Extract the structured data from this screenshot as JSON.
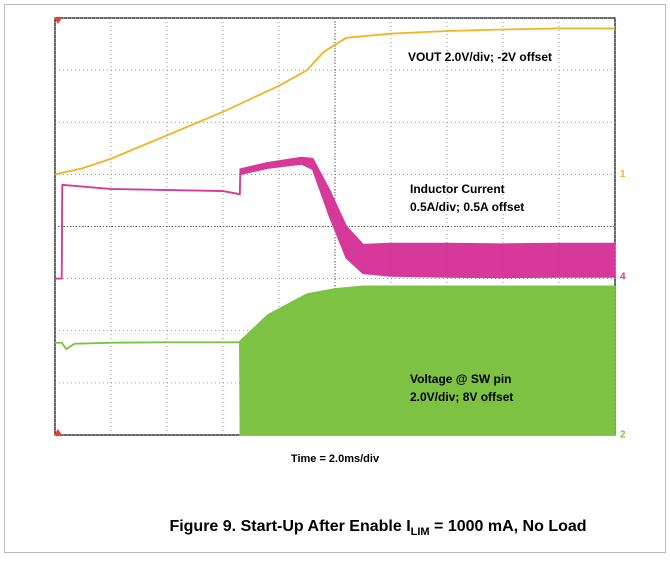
{
  "chart_data": {
    "type": "oscilloscope",
    "xlabel": "Time = 2.0ms/div",
    "caption": {
      "prefix": "Figure 9. Start-Up After Enable I",
      "sub": "LIM",
      "suffix": " = 1000 mA, No Load"
    },
    "xlim": [
      0,
      10
    ],
    "ylim": [
      0,
      8
    ],
    "xticks": [
      0,
      1,
      2,
      3,
      4,
      5,
      6,
      7,
      8,
      9,
      10
    ],
    "yticks": [
      0,
      1,
      2,
      3,
      4,
      5,
      6,
      7,
      8
    ],
    "grid": true,
    "series": [
      {
        "color": "#f5b324",
        "marker": "1",
        "label": [
          "VOUT 2.0V/div; -2V offset"
        ],
        "x": [
          0,
          0.5,
          1,
          2,
          3,
          4,
          4.5,
          4.8,
          5.2,
          6,
          7,
          8,
          9,
          10
        ],
        "values": [
          5,
          5.12,
          5.3,
          5.75,
          6.2,
          6.7,
          7.0,
          7.35,
          7.62,
          7.7,
          7.75,
          7.78,
          7.8,
          7.8
        ]
      },
      {
        "color": "#d6399a",
        "marker": "4",
        "label": [
          "Inductor Current",
          "0.5A/div; 0.5A offset"
        ],
        "x": [
          0,
          0.12,
          0.13,
          1,
          2,
          3,
          3.3,
          3.31,
          3.8,
          4.4,
          4.6,
          4.9,
          5.2,
          5.5,
          6,
          7,
          8,
          9,
          10
        ],
        "values": [
          3.0,
          3.0,
          4.8,
          4.72,
          4.7,
          4.68,
          4.62,
          5.1,
          5.22,
          5.32,
          5.3,
          4.7,
          4.0,
          3.65,
          3.67,
          3.67,
          3.66,
          3.67,
          3.67
        ],
        "low": [
          3.0,
          3.0,
          4.8,
          4.72,
          4.7,
          4.68,
          4.62,
          5.0,
          5.12,
          5.2,
          5.1,
          4.2,
          3.4,
          3.1,
          3.05,
          3.03,
          3.02,
          3.03,
          3.03
        ]
      },
      {
        "color": "#7dc242",
        "marker": "2",
        "label": [
          "Voltage @ SW pin",
          "2.0V/div; 8V offset"
        ],
        "x": [
          0,
          0.12,
          0.2,
          0.35,
          1,
          2,
          3.3,
          3.31,
          3.8,
          4.5,
          5,
          5.5,
          7,
          10
        ],
        "values": [
          1.77,
          1.77,
          1.65,
          1.75,
          1.77,
          1.78,
          1.78,
          1.8,
          2.3,
          2.7,
          2.8,
          2.85,
          2.85,
          2.85
        ],
        "low": [
          1.77,
          1.77,
          1.65,
          1.75,
          1.77,
          1.78,
          1.78,
          0,
          0,
          0,
          0,
          0,
          0,
          0
        ]
      }
    ]
  }
}
